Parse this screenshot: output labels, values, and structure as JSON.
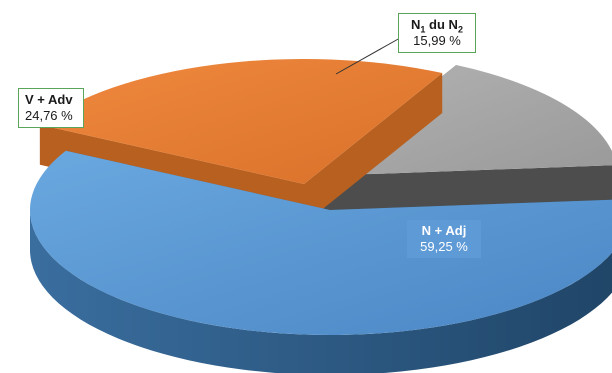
{
  "chart_data": {
    "type": "pie",
    "title": "",
    "style": "3d-exploded",
    "slices": [
      {
        "key": "n_adj",
        "name": "N + Adj",
        "value": 59.25,
        "label": "59,25 %",
        "color": "#5b9bd5",
        "side": "#2e5f8f"
      },
      {
        "key": "v_adv",
        "name": "V + Adv",
        "value": 24.76,
        "label": "24,76 %",
        "color": "#ed7d31",
        "side": "#a8531c"
      },
      {
        "key": "n1_du_n2",
        "name": "N1 du N2",
        "value": 15.99,
        "label": "15,99 %",
        "color": "#a5a5a5",
        "side": "#595959"
      }
    ],
    "labels": {
      "n_adj": {
        "name": "N + Adj",
        "value": "59,25 %"
      },
      "v_adv": {
        "name": "V + Adv",
        "value": "24,76 %"
      },
      "n1_du_n2": {
        "name_main": "N",
        "sub1": "1",
        "mid": " du N",
        "sub2": "2",
        "value": "15,99 %"
      }
    }
  }
}
